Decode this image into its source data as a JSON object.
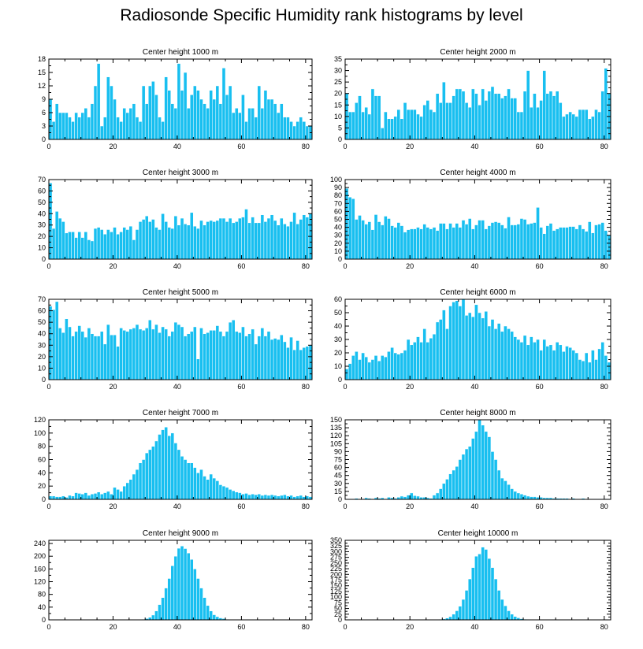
{
  "page_title": "Radiosonde Specific Humidity rank histograms by level",
  "colors": {
    "bar_fill": "#18bff0",
    "bar_stroke": "#ffffff",
    "axis": "#000000"
  },
  "chart_data": [
    {
      "type": "bar",
      "title": "Center height 1000 m",
      "categories_start": 0,
      "xlim": [
        0,
        82
      ],
      "xticks": [
        0,
        20,
        40,
        60,
        80
      ],
      "ylim": [
        0,
        18
      ],
      "yticks": [
        0,
        3,
        6,
        9,
        12,
        15,
        18
      ],
      "values": [
        9,
        4,
        8,
        6,
        6,
        6,
        5,
        4,
        6,
        5,
        6,
        7,
        5,
        8,
        12,
        17,
        3,
        5,
        14,
        12,
        9,
        5,
        4,
        7,
        6,
        7,
        8,
        5,
        4,
        12,
        8,
        12,
        13,
        10,
        5,
        4,
        14,
        11,
        8,
        7,
        17,
        11,
        15,
        7,
        10,
        12,
        11,
        9,
        8,
        7,
        11,
        9,
        12,
        8,
        16,
        10,
        12,
        6,
        7,
        6,
        10,
        4,
        7,
        7,
        5,
        12,
        7,
        11,
        9,
        9,
        8,
        6,
        8,
        5,
        5,
        4,
        3,
        4,
        5,
        4,
        3,
        3
      ]
    },
    {
      "type": "bar",
      "title": "Center height 2000 m",
      "categories_start": 0,
      "xlim": [
        0,
        82
      ],
      "xticks": [
        0,
        20,
        40,
        60,
        80
      ],
      "ylim": [
        0,
        35
      ],
      "yticks": [
        0,
        5,
        10,
        15,
        20,
        25,
        30,
        35
      ],
      "values": [
        20,
        12,
        12,
        16,
        19,
        12,
        14,
        11,
        22,
        19,
        19,
        5,
        12,
        9,
        9,
        10,
        13,
        9,
        16,
        13,
        13,
        13,
        11,
        10,
        15,
        17,
        13,
        12,
        20,
        16,
        25,
        16,
        16,
        19,
        22,
        22,
        21,
        16,
        14,
        22,
        20,
        15,
        22,
        17,
        21,
        23,
        20,
        20,
        18,
        19,
        22,
        18,
        18,
        12,
        12,
        21,
        30,
        14,
        20,
        14,
        17,
        30,
        20,
        21,
        19,
        21,
        16,
        10,
        11,
        12,
        11,
        10,
        13,
        13,
        13,
        9,
        10,
        13,
        12,
        21,
        31,
        20
      ]
    },
    {
      "type": "bar",
      "title": "Center height 3000 m",
      "categories_start": 0,
      "xlim": [
        0,
        82
      ],
      "xticks": [
        0,
        20,
        40,
        60,
        80
      ],
      "ylim": [
        0,
        70
      ],
      "yticks": [
        0,
        10,
        20,
        30,
        40,
        50,
        60,
        70
      ],
      "values": [
        67,
        27,
        42,
        36,
        33,
        23,
        24,
        24,
        19,
        24,
        19,
        24,
        17,
        16,
        27,
        28,
        26,
        22,
        26,
        24,
        28,
        22,
        24,
        28,
        26,
        29,
        17,
        26,
        33,
        35,
        38,
        33,
        35,
        28,
        26,
        40,
        33,
        28,
        27,
        38,
        30,
        36,
        31,
        30,
        41,
        29,
        27,
        34,
        30,
        33,
        34,
        33,
        34,
        36,
        36,
        33,
        36,
        32,
        33,
        36,
        37,
        44,
        32,
        37,
        32,
        32,
        39,
        33,
        36,
        39,
        34,
        30,
        36,
        31,
        29,
        33,
        41,
        31,
        35,
        39,
        37,
        40
      ]
    },
    {
      "type": "bar",
      "title": "Center height 4000 m",
      "categories_start": 0,
      "xlim": [
        0,
        82
      ],
      "xticks": [
        0,
        20,
        40,
        60,
        80
      ],
      "ylim": [
        0,
        100
      ],
      "yticks": [
        0,
        10,
        20,
        30,
        40,
        50,
        60,
        70,
        80,
        90,
        100
      ],
      "values": [
        89,
        78,
        76,
        50,
        55,
        49,
        44,
        47,
        37,
        56,
        47,
        43,
        54,
        51,
        42,
        40,
        46,
        42,
        34,
        37,
        38,
        38,
        40,
        38,
        44,
        40,
        38,
        40,
        36,
        45,
        45,
        38,
        45,
        40,
        45,
        40,
        49,
        44,
        51,
        38,
        43,
        49,
        49,
        38,
        42,
        46,
        47,
        46,
        43,
        39,
        53,
        43,
        43,
        44,
        51,
        50,
        44,
        45,
        46,
        65,
        40,
        32,
        42,
        45,
        36,
        38,
        40,
        40,
        40,
        41,
        41,
        38,
        43,
        38,
        35,
        47,
        33,
        43,
        44,
        46,
        36,
        30
      ]
    },
    {
      "type": "bar",
      "title": "Center height 5000 m",
      "categories_start": 0,
      "xlim": [
        0,
        82
      ],
      "xticks": [
        0,
        20,
        40,
        60,
        80
      ],
      "ylim": [
        0,
        70
      ],
      "yticks": [
        0,
        10,
        20,
        30,
        40,
        50,
        60,
        70
      ],
      "values": [
        64,
        61,
        68,
        45,
        41,
        53,
        46,
        38,
        42,
        47,
        42,
        37,
        45,
        40,
        38,
        38,
        42,
        31,
        48,
        39,
        39,
        29,
        45,
        43,
        42,
        44,
        45,
        48,
        44,
        43,
        45,
        52,
        44,
        48,
        41,
        46,
        44,
        38,
        42,
        50,
        48,
        46,
        38,
        40,
        42,
        46,
        18,
        45,
        40,
        41,
        43,
        43,
        47,
        42,
        38,
        42,
        50,
        52,
        42,
        41,
        46,
        38,
        40,
        44,
        31,
        38,
        45,
        38,
        42,
        35,
        36,
        35,
        39,
        33,
        28,
        37,
        26,
        34,
        26,
        28,
        29,
        30
      ]
    },
    {
      "type": "bar",
      "title": "Center height 6000 m",
      "categories_start": 0,
      "xlim": [
        0,
        82
      ],
      "xticks": [
        0,
        20,
        40,
        60,
        80
      ],
      "ylim": [
        0,
        60
      ],
      "yticks": [
        0,
        10,
        20,
        30,
        40,
        50,
        60
      ],
      "values": [
        8,
        12,
        18,
        21,
        15,
        20,
        17,
        13,
        15,
        18,
        14,
        18,
        17,
        21,
        24,
        20,
        19,
        20,
        22,
        30,
        26,
        28,
        32,
        28,
        38,
        28,
        31,
        34,
        43,
        45,
        52,
        38,
        55,
        58,
        59,
        55,
        60,
        48,
        50,
        47,
        56,
        50,
        46,
        51,
        40,
        45,
        38,
        42,
        36,
        40,
        38,
        36,
        32,
        30,
        28,
        33,
        26,
        32,
        28,
        30,
        22,
        30,
        25,
        26,
        22,
        28,
        26,
        21,
        25,
        24,
        22,
        20,
        15,
        14,
        20,
        13,
        22,
        15,
        23,
        28,
        18,
        13
      ]
    },
    {
      "type": "bar",
      "title": "Center height 7000 m",
      "categories_start": 0,
      "xlim": [
        0,
        82
      ],
      "xticks": [
        0,
        20,
        40,
        60,
        80
      ],
      "ylim": [
        0,
        120
      ],
      "yticks": [
        0,
        20,
        40,
        60,
        80,
        100,
        120
      ],
      "values": [
        5,
        5,
        4,
        4,
        5,
        3,
        6,
        5,
        10,
        9,
        8,
        10,
        6,
        8,
        9,
        11,
        8,
        10,
        12,
        8,
        18,
        15,
        12,
        20,
        25,
        30,
        38,
        45,
        55,
        60,
        70,
        75,
        80,
        88,
        98,
        105,
        109,
        96,
        100,
        85,
        75,
        65,
        60,
        55,
        55,
        48,
        40,
        45,
        35,
        30,
        38,
        32,
        28,
        22,
        20,
        18,
        15,
        13,
        11,
        10,
        8,
        9,
        7,
        8,
        7,
        8,
        6,
        7,
        6,
        7,
        6,
        5,
        6,
        7,
        5,
        6,
        4,
        5,
        6,
        4,
        5,
        4
      ]
    },
    {
      "type": "bar",
      "title": "Center height 8000 m",
      "categories_start": 0,
      "xlim": [
        0,
        82
      ],
      "xticks": [
        0,
        20,
        40,
        60,
        80
      ],
      "ylim": [
        0,
        150
      ],
      "yticks": [
        0,
        15,
        30,
        45,
        60,
        75,
        90,
        105,
        120,
        135,
        150
      ],
      "values": [
        1,
        1,
        1,
        2,
        1,
        1,
        3,
        2,
        1,
        3,
        2,
        3,
        1,
        4,
        3,
        2,
        4,
        6,
        5,
        8,
        12,
        7,
        6,
        4,
        4,
        3,
        2,
        8,
        12,
        20,
        30,
        38,
        48,
        55,
        62,
        75,
        85,
        95,
        100,
        115,
        128,
        150,
        140,
        128,
        118,
        90,
        75,
        55,
        40,
        35,
        28,
        20,
        15,
        12,
        10,
        8,
        6,
        5,
        5,
        4,
        4,
        3,
        3,
        3,
        2,
        2,
        2,
        2,
        2,
        1,
        2,
        1,
        1,
        2,
        1,
        1,
        1,
        1,
        1,
        1,
        1,
        1
      ]
    },
    {
      "type": "bar",
      "title": "Center height 9000 m",
      "categories_start": 0,
      "xlim": [
        0,
        82
      ],
      "xticks": [
        0,
        20,
        40,
        60,
        80
      ],
      "ylim": [
        0,
        250
      ],
      "yticks": [
        0,
        40,
        80,
        120,
        160,
        200,
        240
      ],
      "values": [
        0,
        0,
        0,
        0,
        0,
        0,
        0,
        0,
        0,
        0,
        0,
        0,
        0,
        0,
        0,
        0,
        0,
        0,
        0,
        0,
        0,
        0,
        0,
        0,
        0,
        0,
        0,
        0,
        1,
        2,
        4,
        8,
        15,
        28,
        48,
        70,
        100,
        130,
        170,
        200,
        225,
        232,
        224,
        210,
        190,
        160,
        130,
        100,
        70,
        45,
        28,
        16,
        10,
        6,
        4,
        2,
        1,
        1,
        0,
        0,
        0,
        0,
        0,
        0,
        0,
        0,
        0,
        0,
        0,
        0,
        0,
        0,
        0,
        0,
        0,
        0,
        0,
        0,
        0,
        0,
        0,
        0
      ]
    },
    {
      "type": "bar",
      "title": "Center height 10000 m",
      "categories_start": 0,
      "xlim": [
        0,
        82
      ],
      "xticks": [
        0,
        20,
        40,
        60,
        80
      ],
      "ylim": [
        0,
        350
      ],
      "yticks": [
        0,
        25,
        50,
        75,
        100,
        125,
        150,
        175,
        200,
        225,
        250,
        275,
        300,
        325,
        350
      ],
      "values": [
        0,
        0,
        0,
        0,
        0,
        0,
        0,
        0,
        0,
        0,
        0,
        0,
        0,
        0,
        0,
        0,
        0,
        0,
        0,
        0,
        0,
        0,
        0,
        0,
        0,
        0,
        0,
        0,
        0,
        2,
        4,
        8,
        14,
        25,
        40,
        60,
        90,
        130,
        180,
        230,
        280,
        290,
        320,
        310,
        270,
        230,
        180,
        130,
        90,
        62,
        40,
        25,
        15,
        9,
        5,
        3,
        2,
        1,
        1,
        0,
        0,
        0,
        0,
        0,
        0,
        0,
        0,
        0,
        0,
        0,
        0,
        0,
        0,
        0,
        0,
        0,
        0,
        0,
        0,
        0,
        0,
        0
      ]
    }
  ]
}
